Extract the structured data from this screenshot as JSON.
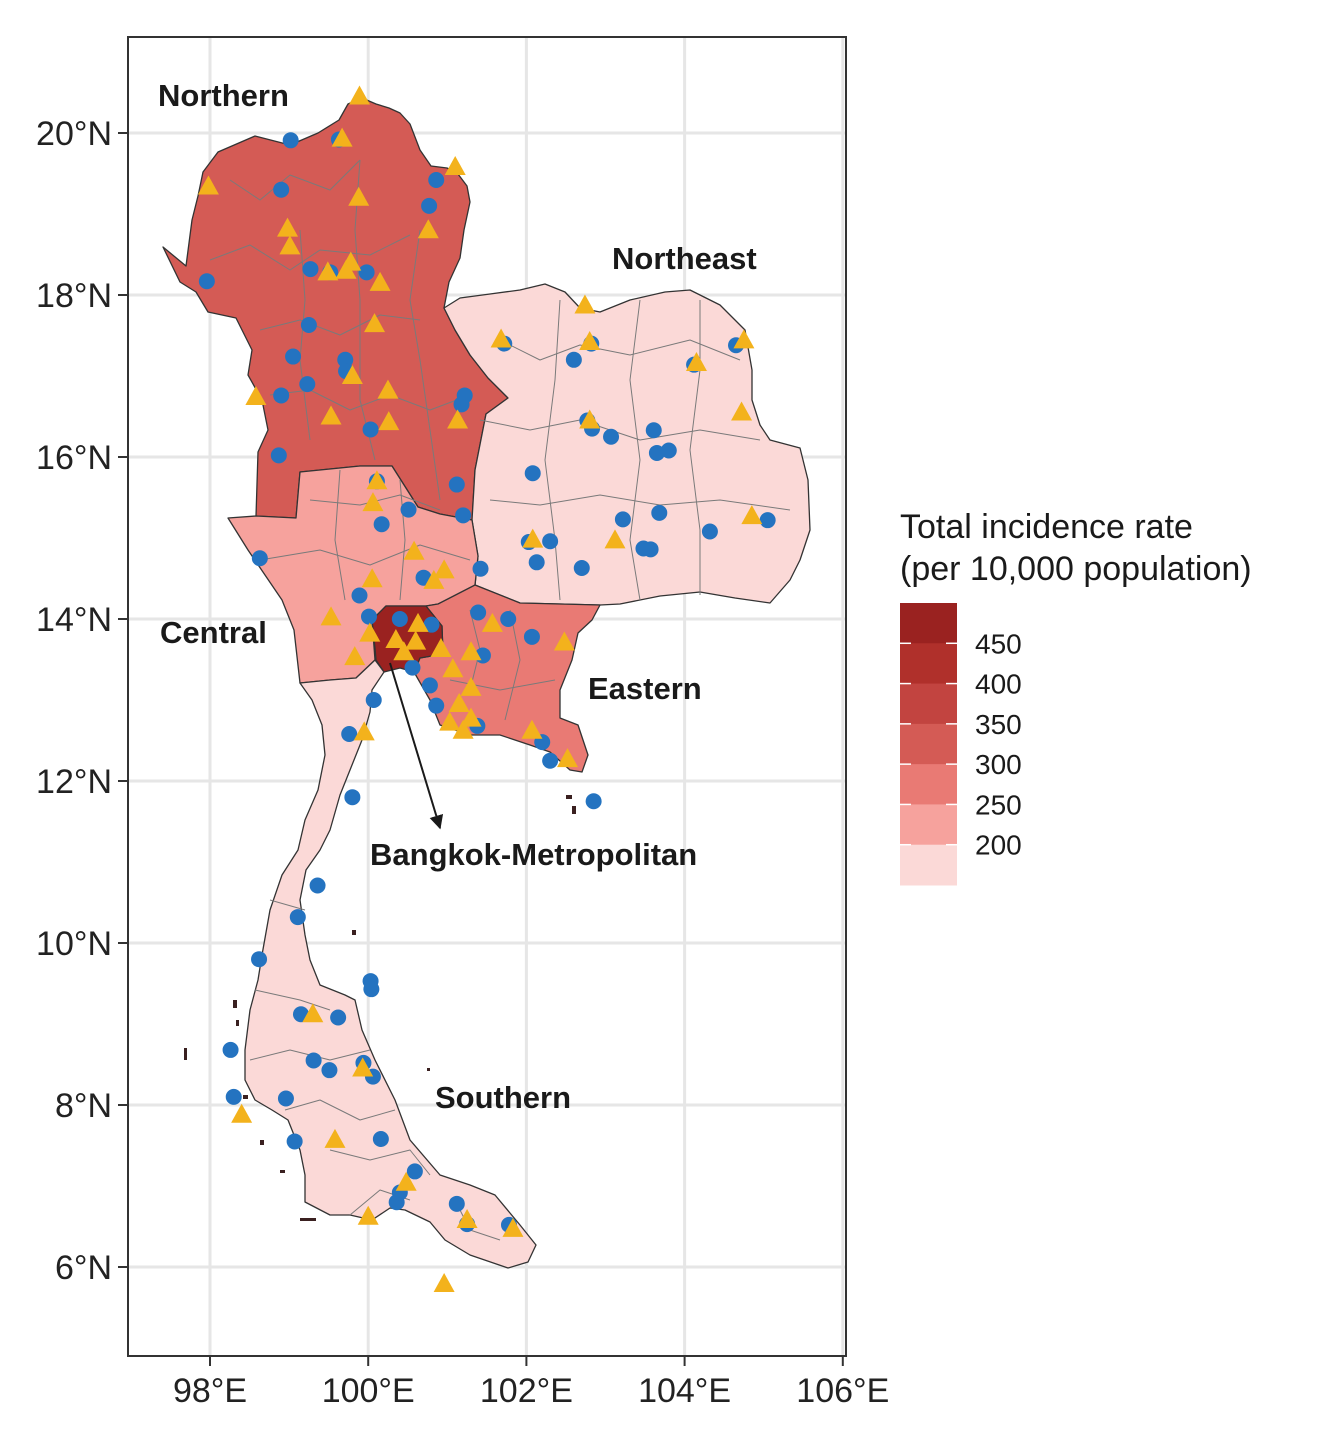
{
  "chart_data": {
    "type": "choropleth-map",
    "x_axis": {
      "ticks": [
        "98°E",
        "100°E",
        "102°E",
        "104°E",
        "106°E"
      ],
      "tick_values": [
        98,
        100,
        102,
        104,
        106
      ],
      "range": [
        97,
        106
      ]
    },
    "y_axis": {
      "ticks": [
        "6°N",
        "8°N",
        "10°N",
        "12°N",
        "14°N",
        "16°N",
        "18°N",
        "20°N"
      ],
      "tick_values": [
        6,
        8,
        10,
        12,
        14,
        16,
        18,
        20
      ],
      "range": [
        5,
        21.2
      ]
    },
    "grid": true,
    "legend": {
      "title_line1": "Total incidence rate",
      "title_line2": "(per 10,000 population)",
      "position": "right",
      "break_labels": [
        "450",
        "400",
        "350",
        "300",
        "250",
        "200"
      ],
      "colors": [
        "#9a2220",
        "#b0302b",
        "#c24440",
        "#d45b55",
        "#e97a74",
        "#f6a29d",
        "#fbd9d7"
      ]
    },
    "regions": [
      {
        "label": "Northern",
        "fill": "#d45b55"
      },
      {
        "label": "Northeast",
        "fill": "#fbd9d7"
      },
      {
        "label": "Central",
        "fill": "#f6a29d"
      },
      {
        "label": "Eastern",
        "fill": "#e97a74"
      },
      {
        "label": "Bangkok-Metropolitan",
        "fill": "#9a2220"
      },
      {
        "label": "Southern",
        "fill": "#fbd9d7"
      }
    ],
    "marker_colors": {
      "circle": "#2473c0",
      "triangle": "#f3b21c"
    },
    "circles": [
      [
        99.02,
        19.91
      ],
      [
        99.63,
        19.92
      ],
      [
        98.9,
        19.3
      ],
      [
        100.86,
        19.42
      ],
      [
        100.77,
        19.1
      ],
      [
        97.96,
        18.17
      ],
      [
        99.27,
        18.32
      ],
      [
        99.52,
        18.28
      ],
      [
        99.98,
        18.28
      ],
      [
        99.25,
        17.63
      ],
      [
        99.05,
        17.24
      ],
      [
        99.71,
        17.2
      ],
      [
        99.72,
        17.06
      ],
      [
        98.9,
        16.76
      ],
      [
        99.23,
        16.9
      ],
      [
        100.03,
        16.34
      ],
      [
        101.18,
        16.65
      ],
      [
        101.22,
        16.76
      ],
      [
        98.87,
        16.02
      ],
      [
        101.12,
        15.66
      ],
      [
        100.11,
        15.7
      ],
      [
        100.51,
        15.35
      ],
      [
        100.17,
        15.17
      ],
      [
        101.2,
        15.28
      ],
      [
        101.42,
        14.62
      ],
      [
        98.63,
        14.75
      ],
      [
        99.89,
        14.29
      ],
      [
        100.7,
        14.51
      ],
      [
        100.01,
        14.03
      ],
      [
        100.4,
        14.0
      ],
      [
        101.39,
        14.08
      ],
      [
        101.77,
        14.0
      ],
      [
        102.07,
        13.78
      ],
      [
        101.45,
        13.55
      ],
      [
        100.8,
        13.93
      ],
      [
        100.56,
        13.4
      ],
      [
        100.78,
        13.18
      ],
      [
        100.86,
        12.93
      ],
      [
        100.07,
        13.0
      ],
      [
        99.76,
        12.58
      ],
      [
        101.38,
        12.68
      ],
      [
        102.2,
        12.48
      ],
      [
        102.3,
        12.25
      ],
      [
        102.85,
        11.75
      ],
      [
        99.8,
        11.8
      ],
      [
        99.36,
        10.71
      ],
      [
        99.11,
        10.32
      ],
      [
        98.62,
        9.8
      ],
      [
        100.03,
        9.53
      ],
      [
        100.04,
        9.43
      ],
      [
        99.15,
        9.12
      ],
      [
        99.62,
        9.08
      ],
      [
        98.26,
        8.68
      ],
      [
        99.31,
        8.55
      ],
      [
        99.51,
        8.43
      ],
      [
        99.94,
        8.52
      ],
      [
        100.06,
        8.35
      ],
      [
        98.3,
        8.1
      ],
      [
        98.96,
        8.08
      ],
      [
        99.07,
        7.55
      ],
      [
        100.16,
        7.58
      ],
      [
        100.59,
        7.18
      ],
      [
        100.36,
        6.8
      ],
      [
        100.4,
        6.92
      ],
      [
        101.12,
        6.78
      ],
      [
        101.25,
        6.53
      ],
      [
        101.78,
        6.52
      ],
      [
        102.6,
        17.2
      ],
      [
        102.77,
        16.45
      ],
      [
        102.83,
        16.35
      ],
      [
        103.07,
        16.25
      ],
      [
        103.61,
        16.33
      ],
      [
        103.65,
        16.05
      ],
      [
        103.8,
        16.08
      ],
      [
        102.08,
        15.8
      ],
      [
        103.22,
        15.23
      ],
      [
        103.68,
        15.31
      ],
      [
        102.03,
        14.95
      ],
      [
        102.3,
        14.96
      ],
      [
        102.13,
        14.7
      ],
      [
        102.7,
        14.63
      ],
      [
        103.48,
        14.87
      ],
      [
        103.57,
        14.86
      ],
      [
        104.32,
        15.08
      ],
      [
        105.05,
        15.22
      ],
      [
        104.12,
        17.14
      ],
      [
        104.65,
        17.38
      ],
      [
        102.82,
        17.4
      ],
      [
        101.72,
        17.4
      ]
    ],
    "triangles": [
      [
        99.89,
        20.45
      ],
      [
        99.67,
        19.93
      ],
      [
        101.1,
        19.58
      ],
      [
        97.98,
        19.34
      ],
      [
        99.88,
        19.2
      ],
      [
        98.98,
        18.82
      ],
      [
        99.01,
        18.6
      ],
      [
        100.76,
        18.8
      ],
      [
        99.49,
        18.28
      ],
      [
        99.72,
        18.3
      ],
      [
        99.78,
        18.4
      ],
      [
        100.15,
        18.15
      ],
      [
        100.08,
        17.64
      ],
      [
        99.8,
        17.0
      ],
      [
        100.25,
        16.82
      ],
      [
        98.58,
        16.74
      ],
      [
        99.53,
        16.5
      ],
      [
        100.26,
        16.43
      ],
      [
        101.13,
        16.45
      ],
      [
        100.11,
        15.7
      ],
      [
        100.06,
        15.43
      ],
      [
        100.58,
        14.83
      ],
      [
        100.05,
        14.49
      ],
      [
        100.96,
        14.6
      ],
      [
        100.83,
        14.47
      ],
      [
        99.53,
        14.02
      ],
      [
        99.83,
        13.53
      ],
      [
        100.02,
        13.82
      ],
      [
        100.35,
        13.74
      ],
      [
        100.63,
        13.94
      ],
      [
        100.45,
        13.59
      ],
      [
        100.6,
        13.72
      ],
      [
        100.92,
        13.63
      ],
      [
        101.3,
        13.59
      ],
      [
        101.07,
        13.38
      ],
      [
        101.3,
        13.15
      ],
      [
        101.15,
        12.95
      ],
      [
        101.03,
        12.72
      ],
      [
        101.3,
        12.77
      ],
      [
        101.2,
        12.62
      ],
      [
        102.07,
        12.62
      ],
      [
        99.95,
        12.6
      ],
      [
        102.52,
        12.27
      ],
      [
        101.57,
        13.94
      ],
      [
        102.48,
        13.71
      ],
      [
        99.58,
        7.57
      ],
      [
        100.48,
        7.04
      ],
      [
        99.3,
        9.12
      ],
      [
        99.93,
        8.45
      ],
      [
        100.0,
        6.62
      ],
      [
        100.96,
        5.79
      ],
      [
        101.25,
        6.58
      ],
      [
        101.83,
        6.47
      ],
      [
        98.4,
        7.88
      ],
      [
        102.74,
        17.87
      ],
      [
        102.8,
        17.42
      ],
      [
        102.8,
        16.45
      ],
      [
        103.12,
        14.97
      ],
      [
        104.15,
        17.16
      ],
      [
        104.75,
        17.44
      ],
      [
        104.72,
        16.55
      ],
      [
        104.85,
        15.27
      ],
      [
        102.08,
        14.98
      ],
      [
        101.68,
        17.45
      ]
    ]
  }
}
